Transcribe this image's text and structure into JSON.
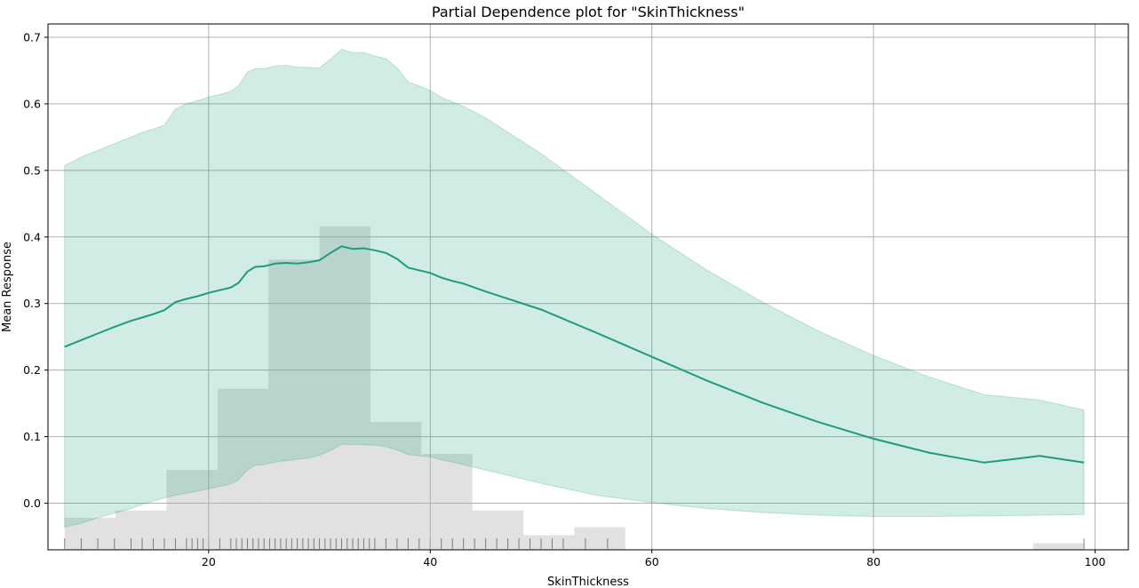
{
  "chart_data": {
    "type": "line",
    "title": "Partial Dependence plot for \"SkinThickness\"",
    "xlabel": "SkinThickness",
    "ylabel": "Mean Response",
    "xlim": [
      5.5,
      103
    ],
    "ylim": [
      -0.07,
      0.72
    ],
    "xticks": [
      20,
      40,
      60,
      80,
      100
    ],
    "yticks": [
      0.0,
      0.1,
      0.2,
      0.3,
      0.4,
      0.5,
      0.6,
      0.7
    ],
    "grid": true,
    "colors": {
      "line": "#1b9e77",
      "band": "#1b9e77",
      "histogram": "#e1e1e1",
      "rug": "#000000",
      "grid": "#b0b0b0"
    },
    "series": {
      "x": [
        7,
        8.5,
        10,
        11.5,
        13,
        14,
        15,
        16,
        17,
        18,
        19,
        20,
        21,
        22,
        22.7,
        23.5,
        24.2,
        25,
        26,
        27,
        28,
        29,
        30,
        31,
        32,
        33,
        34,
        35,
        36,
        37,
        38,
        39,
        40,
        41,
        42,
        43,
        45,
        50,
        55,
        60,
        65,
        70,
        75,
        80,
        85,
        90,
        95,
        99
      ],
      "mean": [
        0.235,
        0.245,
        0.255,
        0.265,
        0.274,
        0.279,
        0.284,
        0.29,
        0.302,
        0.307,
        0.311,
        0.316,
        0.32,
        0.324,
        0.331,
        0.348,
        0.355,
        0.356,
        0.36,
        0.361,
        0.36,
        0.362,
        0.365,
        0.376,
        0.386,
        0.382,
        0.383,
        0.38,
        0.376,
        0.367,
        0.354,
        0.35,
        0.346,
        0.339,
        0.334,
        0.33,
        0.318,
        0.291,
        0.256,
        0.22,
        0.184,
        0.151,
        0.122,
        0.097,
        0.076,
        0.061,
        0.071,
        0.061
      ],
      "upper": [
        0.507,
        0.52,
        0.53,
        0.54,
        0.55,
        0.557,
        0.562,
        0.568,
        0.592,
        0.6,
        0.605,
        0.61,
        0.614,
        0.619,
        0.627,
        0.648,
        0.653,
        0.653,
        0.657,
        0.658,
        0.655,
        0.655,
        0.654,
        0.667,
        0.682,
        0.677,
        0.677,
        0.672,
        0.668,
        0.654,
        0.633,
        0.627,
        0.62,
        0.61,
        0.603,
        0.596,
        0.579,
        0.525,
        0.465,
        0.404,
        0.35,
        0.302,
        0.259,
        0.222,
        0.19,
        0.163,
        0.155,
        0.14
      ],
      "lower": [
        -0.036,
        -0.03,
        -0.022,
        -0.015,
        -0.008,
        -0.002,
        0.003,
        0.008,
        0.012,
        0.015,
        0.018,
        0.022,
        0.025,
        0.029,
        0.035,
        0.05,
        0.057,
        0.058,
        0.062,
        0.064,
        0.066,
        0.068,
        0.072,
        0.079,
        0.089,
        0.088,
        0.088,
        0.087,
        0.085,
        0.08,
        0.073,
        0.071,
        0.07,
        0.065,
        0.062,
        0.058,
        0.05,
        0.03,
        0.012,
        0.001,
        -0.008,
        -0.014,
        -0.018,
        -0.02,
        -0.02,
        -0.019,
        -0.018,
        -0.017
      ]
    },
    "histogram": [
      {
        "x0": 7.0,
        "x1": 11.6,
        "top": -0.022
      },
      {
        "x0": 11.6,
        "x1": 16.2,
        "top": -0.011
      },
      {
        "x0": 16.2,
        "x1": 20.8,
        "top": 0.05
      },
      {
        "x0": 20.8,
        "x1": 25.4,
        "top": 0.172
      },
      {
        "x0": 25.4,
        "x1": 30.0,
        "top": 0.366
      },
      {
        "x0": 30.0,
        "x1": 34.6,
        "top": 0.416
      },
      {
        "x0": 34.6,
        "x1": 39.2,
        "top": 0.122
      },
      {
        "x0": 39.2,
        "x1": 43.8,
        "top": 0.074
      },
      {
        "x0": 43.8,
        "x1": 48.4,
        "top": -0.011
      },
      {
        "x0": 48.4,
        "x1": 53.0,
        "top": -0.048
      },
      {
        "x0": 53.0,
        "x1": 57.6,
        "top": -0.036
      },
      {
        "x0": 94.4,
        "x1": 99.0,
        "top": -0.06
      }
    ],
    "rug": [
      7,
      8.5,
      10,
      11.5,
      13,
      14,
      15,
      16,
      17,
      18,
      18.5,
      19,
      19.5,
      20,
      21,
      22,
      22.5,
      23,
      23.5,
      24,
      24.5,
      25,
      25.5,
      26,
      26.5,
      27,
      27.5,
      28,
      28.5,
      29,
      29.5,
      30,
      30.5,
      31,
      31.5,
      32,
      32.5,
      33,
      33.5,
      34,
      34.5,
      35,
      36,
      37,
      38,
      39,
      40,
      41,
      42,
      43,
      44,
      45,
      46,
      47,
      48,
      49,
      50,
      51,
      52,
      54,
      56,
      99
    ]
  }
}
